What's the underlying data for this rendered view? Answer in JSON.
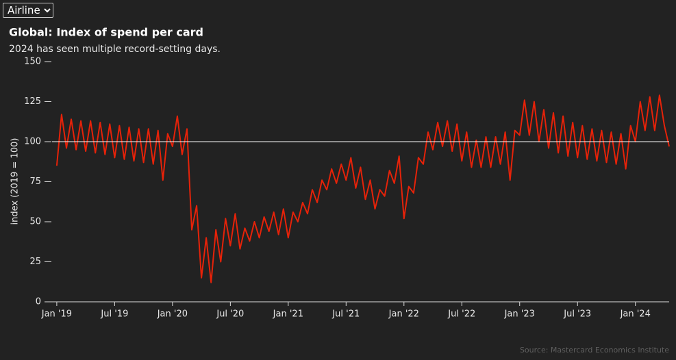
{
  "dropdown": {
    "options": [
      "Airline"
    ]
  },
  "chart_data": {
    "type": "line",
    "title": "Global: Index of spend per card",
    "subtitle": "2024 has seen multiple record-setting days.",
    "y_label": "index (2019 = 100)",
    "source": "Source: Mastercard Economics Institute",
    "color": "#e62209",
    "reference_line": 100,
    "grid": false,
    "xlim": [
      -1.2,
      63.5
    ],
    "ylim": [
      0,
      150
    ],
    "yticks": [
      0,
      25,
      50,
      75,
      100,
      125,
      150
    ],
    "xticks": [
      {
        "value": 0,
        "label": "Jan '19"
      },
      {
        "value": 6,
        "label": "Jul '19"
      },
      {
        "value": 12,
        "label": "Jan '20"
      },
      {
        "value": 18,
        "label": "Jul '20"
      },
      {
        "value": 24,
        "label": "Jan '21"
      },
      {
        "value": 30,
        "label": "Jul '21"
      },
      {
        "value": 36,
        "label": "Jan '22"
      },
      {
        "value": 42,
        "label": "Jul '22"
      },
      {
        "value": 48,
        "label": "Jan '23"
      },
      {
        "value": 54,
        "label": "Jul '23"
      },
      {
        "value": 60,
        "label": "Jan '24"
      }
    ],
    "x": [
      0,
      0.5,
      1,
      1.5,
      2,
      2.5,
      3,
      3.5,
      4,
      4.5,
      5,
      5.5,
      6,
      6.5,
      7,
      7.5,
      8,
      8.5,
      9,
      9.5,
      10,
      10.5,
      11,
      11.5,
      12,
      12.5,
      13,
      13.5,
      14,
      14.5,
      15,
      15.5,
      16,
      16.5,
      17,
      17.5,
      18,
      18.5,
      19,
      19.5,
      20,
      20.5,
      21,
      21.5,
      22,
      22.5,
      23,
      23.5,
      24,
      24.5,
      25,
      25.5,
      26,
      26.5,
      27,
      27.5,
      28,
      28.5,
      29,
      29.5,
      30,
      30.5,
      31,
      31.5,
      32,
      32.5,
      33,
      33.5,
      34,
      34.5,
      35,
      35.5,
      36,
      36.5,
      37,
      37.5,
      38,
      38.5,
      39,
      39.5,
      40,
      40.5,
      41,
      41.5,
      42,
      42.5,
      43,
      43.5,
      44,
      44.5,
      45,
      45.5,
      46,
      46.5,
      47,
      47.5,
      48,
      48.5,
      49,
      49.5,
      50,
      50.5,
      51,
      51.5,
      52,
      52.5,
      53,
      53.5,
      54,
      54.5,
      55,
      55.5,
      56,
      56.5,
      57,
      57.5,
      58,
      58.5,
      59,
      59.5,
      60,
      60.5,
      61,
      61.5,
      62,
      62.5,
      63,
      63.5
    ],
    "values": [
      85,
      117,
      96,
      114,
      95,
      113,
      94,
      113,
      93,
      112,
      92,
      111,
      90,
      110,
      89,
      109,
      88,
      108,
      87,
      108,
      86,
      107,
      76,
      105,
      97,
      116,
      92,
      108,
      45,
      60,
      15,
      40,
      12,
      45,
      25,
      52,
      35,
      55,
      33,
      46,
      38,
      50,
      40,
      53,
      44,
      56,
      42,
      58,
      40,
      56,
      50,
      62,
      55,
      70,
      62,
      76,
      70,
      83,
      74,
      86,
      76,
      90,
      71,
      84,
      64,
      76,
      58,
      70,
      66,
      82,
      74,
      91,
      52,
      72,
      68,
      90,
      86,
      106,
      95,
      112,
      97,
      113,
      94,
      111,
      88,
      106,
      84,
      101,
      84,
      103,
      84,
      103,
      86,
      106,
      76,
      107,
      104,
      126,
      104,
      125,
      100,
      120,
      96,
      118,
      93,
      116,
      91,
      112,
      90,
      110,
      89,
      108,
      88,
      107,
      87,
      106,
      86,
      105,
      83,
      110,
      100,
      125,
      107,
      128,
      107,
      129,
      110,
      97
    ]
  }
}
